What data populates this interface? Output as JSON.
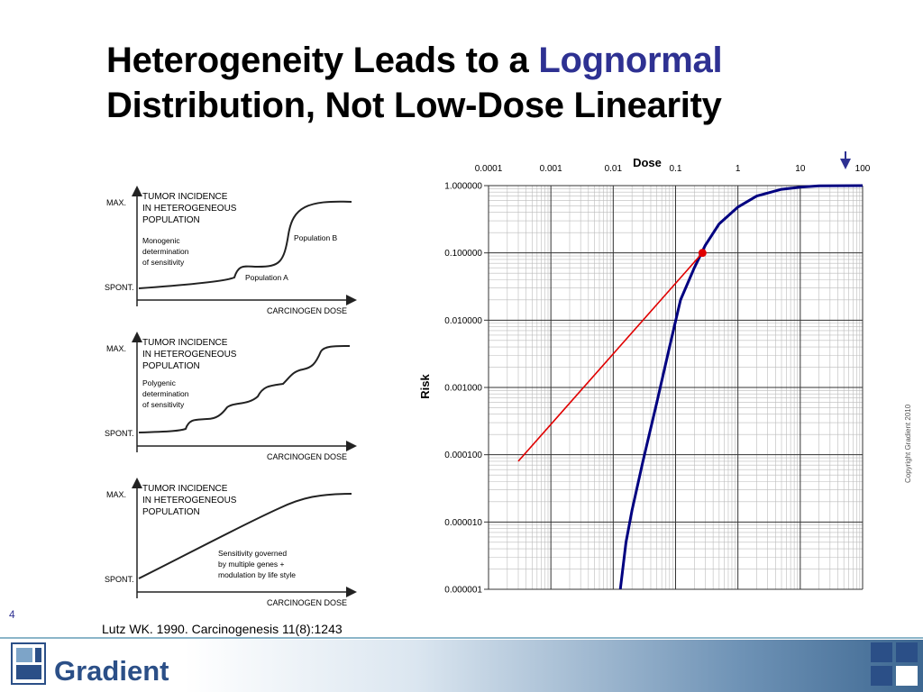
{
  "slide": {
    "title_line1": "Heterogeneity Leads to a ",
    "title_accent": "Lognormal",
    "title_line2": "Distribution, Not Low-Dose Linearity",
    "page_number": "4",
    "citation": "Lutz WK. 1990. Carcinogenesis 11(8):1243",
    "copyright": "Copyright Gradient 2010",
    "brand": "Gradient",
    "accent_color": "#2e3192"
  },
  "panels": [
    {
      "heading": [
        "TUMOR INCIDENCE",
        "IN HETEROGENEOUS",
        "POPULATION"
      ],
      "note": [
        "Monogenic",
        "determination",
        "of sensitivity"
      ],
      "labels": [
        "Population B",
        "Population A"
      ],
      "ymax": "MAX.",
      "ymin": "SPONT.",
      "xlabel": "CARCINOGEN DOSE"
    },
    {
      "heading": [
        "TUMOR INCIDENCE",
        "IN HETEROGENEOUS",
        "POPULATION"
      ],
      "note": [
        "Polygenic",
        "determination",
        "of sensitivity"
      ],
      "labels": [],
      "ymax": "MAX.",
      "ymin": "SPONT.",
      "xlabel": "CARCINOGEN DOSE"
    },
    {
      "heading": [
        "TUMOR INCIDENCE",
        "IN HETEROGENEOUS",
        "POPULATION"
      ],
      "note": [
        "Sensitivity governed",
        "by multiple genes +",
        "modulation by life style"
      ],
      "labels": [],
      "ymax": "MAX.",
      "ymin": "SPONT.",
      "xlabel": "CARCINOGEN DOSE"
    }
  ],
  "chart_data": {
    "type": "line",
    "xlabel": "Dose",
    "ylabel": "Risk",
    "x_scale": "log",
    "y_scale": "log",
    "xlim": [
      0.0001,
      100
    ],
    "ylim": [
      1e-06,
      1
    ],
    "x_ticks": [
      "0.0001",
      "0.001",
      "0.01",
      "0.1",
      "1",
      "10",
      "100"
    ],
    "y_ticks": [
      "0.000001",
      "0.000010",
      "0.000100",
      "0.001000",
      "0.010000",
      "0.100000",
      "1.000000"
    ],
    "grid": true,
    "series": [
      {
        "color": "#000080",
        "points": [
          [
            0.013,
            1e-06
          ],
          [
            0.016,
            5e-06
          ],
          [
            0.02,
            1.5e-05
          ],
          [
            0.03,
            8e-05
          ],
          [
            0.05,
            0.0006
          ],
          [
            0.08,
            0.004
          ],
          [
            0.12,
            0.02
          ],
          [
            0.2,
            0.06
          ],
          [
            0.3,
            0.13
          ],
          [
            0.5,
            0.27
          ],
          [
            1,
            0.48
          ],
          [
            2,
            0.7
          ],
          [
            5,
            0.88
          ],
          [
            10,
            0.95
          ],
          [
            20,
            0.99
          ],
          [
            100,
            1.0
          ]
        ]
      },
      {
        "color": "#e00000",
        "points": [
          [
            0.0003,
            8e-05
          ],
          [
            0.27,
            0.1
          ]
        ]
      }
    ],
    "marker": {
      "x": 0.27,
      "y": 0.1,
      "color": "#e00000"
    }
  }
}
